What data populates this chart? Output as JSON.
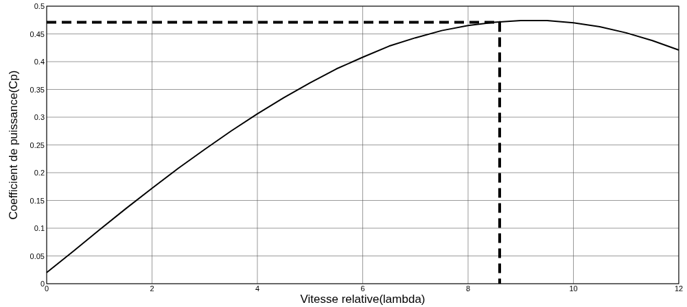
{
  "chart_data": {
    "type": "line",
    "xlabel": "Vitesse relative(lambda)",
    "ylabel": "Coefficient de puissance(Cp)",
    "xlim": [
      0,
      12
    ],
    "ylim": [
      0,
      0.5
    ],
    "xticks": [
      0,
      2,
      4,
      6,
      8,
      10,
      12
    ],
    "yticks": [
      0,
      0.05,
      0.1,
      0.15,
      0.2,
      0.25,
      0.3,
      0.35,
      0.4,
      0.45,
      0.5
    ],
    "grid": true,
    "marker": "none",
    "series": [
      {
        "color": "#000000",
        "line_style": "solid",
        "x": [
          0,
          0.5,
          1,
          1.5,
          2,
          2.5,
          3,
          3.5,
          4,
          4.5,
          5,
          5.5,
          6,
          6.5,
          7,
          7.5,
          8,
          8.5,
          9,
          9.5,
          10,
          10.5,
          11,
          11.5,
          12
        ],
        "values": [
          0.02,
          0.058,
          0.097,
          0.135,
          0.172,
          0.208,
          0.242,
          0.275,
          0.306,
          0.335,
          0.362,
          0.387,
          0.408,
          0.428,
          0.443,
          0.456,
          0.465,
          0.471,
          0.474,
          0.474,
          0.47,
          0.463,
          0.452,
          0.438,
          0.421
        ]
      },
      {
        "color": "#000000",
        "line_style": "dashed",
        "x": [
          0,
          8.6,
          8.6
        ],
        "values": [
          0.471,
          0.471,
          0
        ]
      }
    ]
  }
}
